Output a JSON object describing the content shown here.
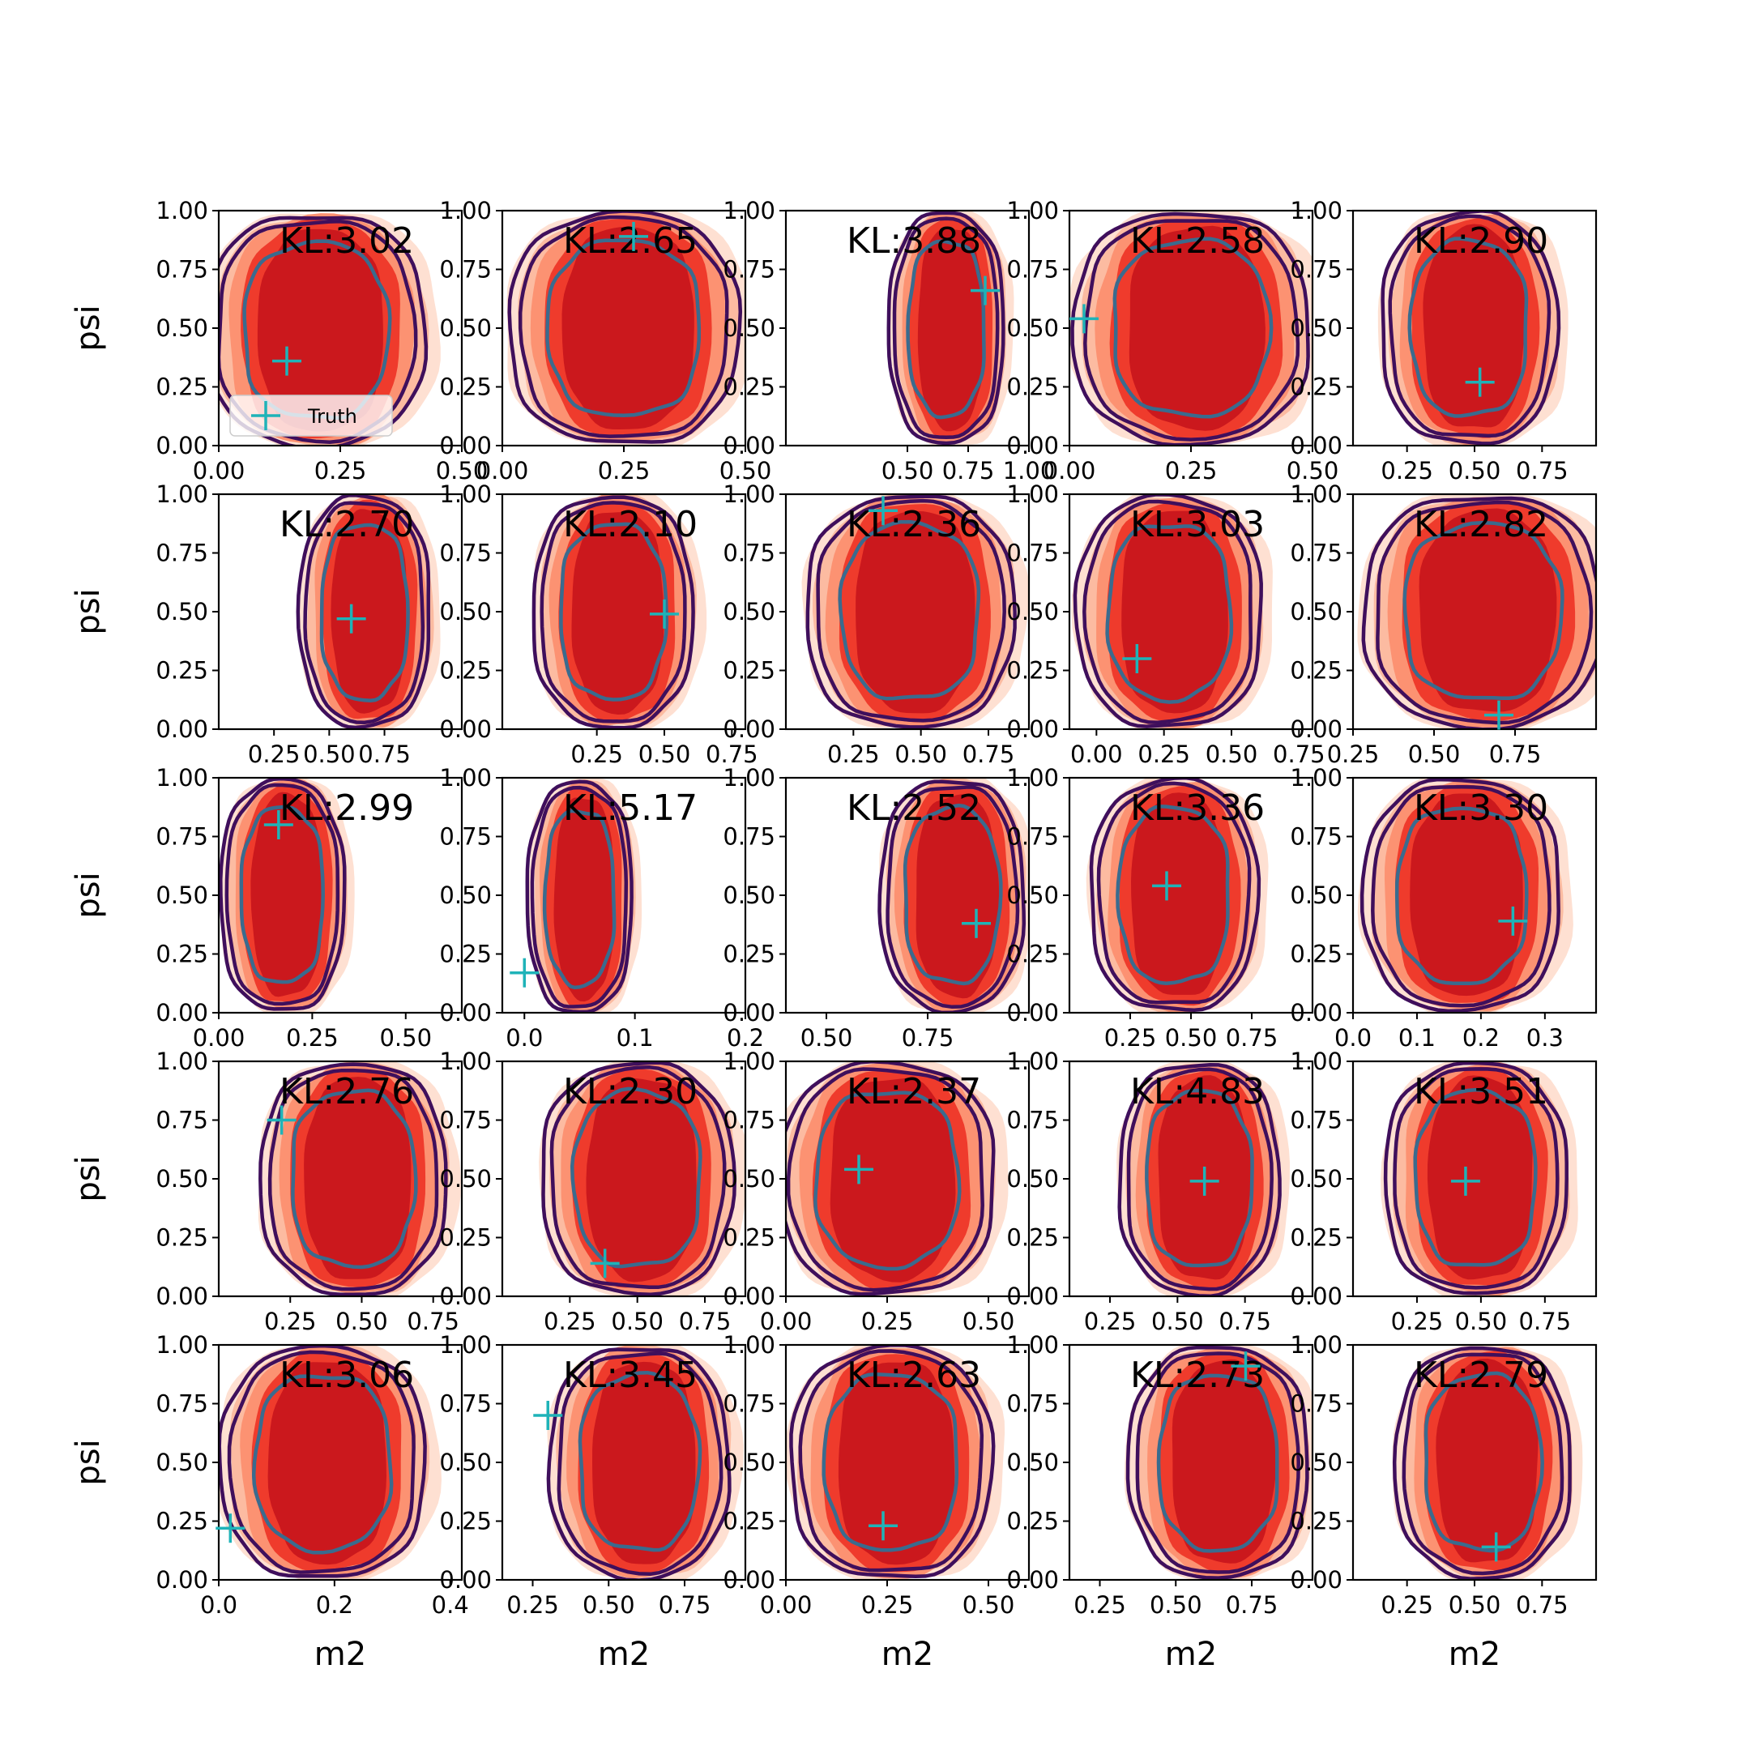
{
  "chart_data": {
    "type": "contour-grid",
    "rows": 5,
    "cols": 5,
    "ylabel": "psi",
    "xlabel": "m2",
    "yticks": [
      "0.00",
      "0.25",
      "0.50",
      "0.75",
      "1.00"
    ],
    "legend": {
      "label": "Truth",
      "placement": "lower-left",
      "panel": 0
    },
    "colors": {
      "fill": [
        "#fee0d2",
        "#fcbba1",
        "#fc9272",
        "#ef3b2c",
        "#cb181d"
      ],
      "outer_line": "#3f0f5c",
      "inner_line": "#3a6b8e",
      "truth": "#1fb3b8"
    },
    "panels": [
      {
        "kl": "KL:3.02",
        "xlim": [
          0.0,
          0.5
        ],
        "xticks": [
          {
            "v": 0.0,
            "t": "0.00"
          },
          {
            "v": 0.25,
            "t": "0.25"
          },
          {
            "v": 0.5,
            "t": "0.50"
          }
        ],
        "center": [
          0.2,
          0.49
        ],
        "width": 0.38,
        "truth": [
          0.14,
          0.36
        ]
      },
      {
        "kl": "KL:2.65",
        "xlim": [
          0.0,
          0.5
        ],
        "xticks": [
          {
            "v": 0.0,
            "t": "0.00"
          },
          {
            "v": 0.25,
            "t": "0.25"
          },
          {
            "v": 0.5,
            "t": "0.50"
          }
        ],
        "center": [
          0.25,
          0.5
        ],
        "width": 0.4,
        "truth": [
          0.27,
          0.89
        ]
      },
      {
        "kl": "KL:3.88",
        "xlim": [
          0.0,
          1.0
        ],
        "xticks": [
          {
            "v": 0.5,
            "t": "0.50"
          },
          {
            "v": 0.75,
            "t": "0.75"
          },
          {
            "v": 1.0,
            "t": "1.00"
          }
        ],
        "center": [
          0.66,
          0.5
        ],
        "width": 0.4,
        "truth": [
          0.82,
          0.66
        ]
      },
      {
        "kl": "KL:2.58",
        "xlim": [
          0.0,
          0.5
        ],
        "xticks": [
          {
            "v": 0.0,
            "t": "0.00"
          },
          {
            "v": 0.25,
            "t": "0.25"
          },
          {
            "v": 0.5,
            "t": "0.50"
          }
        ],
        "center": [
          0.25,
          0.5
        ],
        "width": 0.41,
        "truth": [
          0.03,
          0.54
        ]
      },
      {
        "kl": "KL:2.90",
        "xlim": [
          0.05,
          0.95
        ],
        "xticks": [
          {
            "v": 0.25,
            "t": "0.25"
          },
          {
            "v": 0.5,
            "t": "0.50"
          },
          {
            "v": 0.75,
            "t": "0.75"
          }
        ],
        "center": [
          0.48,
          0.5
        ],
        "width": 0.55,
        "truth": [
          0.52,
          0.27
        ]
      },
      {
        "kl": "KL:2.70",
        "xlim": [
          0.0,
          1.1
        ],
        "xticks": [
          {
            "v": 0.25,
            "t": "0.25"
          },
          {
            "v": 0.5,
            "t": "0.50"
          },
          {
            "v": 0.75,
            "t": "0.75"
          }
        ],
        "center": [
          0.66,
          0.5
        ],
        "width": 0.5,
        "truth": [
          0.6,
          0.47
        ]
      },
      {
        "kl": "KL:2.10",
        "xlim": [
          -0.1,
          0.8
        ],
        "xticks": [
          {
            "v": 0.25,
            "t": "0.25"
          },
          {
            "v": 0.5,
            "t": "0.50"
          },
          {
            "v": 0.75,
            "t": "0.75"
          }
        ],
        "center": [
          0.31,
          0.5
        ],
        "width": 0.5,
        "truth": [
          0.5,
          0.49
        ]
      },
      {
        "kl": "KL:2.36",
        "xlim": [
          0.0,
          0.9
        ],
        "xticks": [
          {
            "v": 0.25,
            "t": "0.25"
          },
          {
            "v": 0.5,
            "t": "0.50"
          },
          {
            "v": 0.75,
            "t": "0.75"
          }
        ],
        "center": [
          0.46,
          0.5
        ],
        "width": 0.65,
        "truth": [
          0.36,
          0.93
        ]
      },
      {
        "kl": "KL:3.03",
        "xlim": [
          -0.1,
          0.8
        ],
        "xticks": [
          {
            "v": 0.0,
            "t": "0.00"
          },
          {
            "v": 0.25,
            "t": "0.25"
          },
          {
            "v": 0.5,
            "t": "0.50"
          },
          {
            "v": 0.75,
            "t": "0.75"
          }
        ],
        "center": [
          0.27,
          0.5
        ],
        "width": 0.58,
        "truth": [
          0.15,
          0.3
        ]
      },
      {
        "kl": "KL:2.82",
        "xlim": [
          0.25,
          1.0
        ],
        "xticks": [
          {
            "v": 0.25,
            "t": "0.25"
          },
          {
            "v": 0.5,
            "t": "0.50"
          },
          {
            "v": 0.75,
            "t": "0.75"
          }
        ],
        "center": [
          0.65,
          0.5
        ],
        "width": 0.62,
        "truth": [
          0.7,
          0.06
        ]
      },
      {
        "kl": "KL:2.99",
        "xlim": [
          0.0,
          0.65
        ],
        "xticks": [
          {
            "v": 0.0,
            "t": "0.00"
          },
          {
            "v": 0.25,
            "t": "0.25"
          },
          {
            "v": 0.5,
            "t": "0.50"
          }
        ],
        "center": [
          0.17,
          0.5
        ],
        "width": 0.28,
        "truth": [
          0.16,
          0.8
        ]
      },
      {
        "kl": "KL:5.17",
        "xlim": [
          -0.02,
          0.2
        ],
        "xticks": [
          {
            "v": 0.0,
            "t": "0.0"
          },
          {
            "v": 0.1,
            "t": "0.1"
          },
          {
            "v": 0.2,
            "t": "0.2"
          }
        ],
        "center": [
          0.05,
          0.49
        ],
        "width": 0.08,
        "truth": [
          0.0,
          0.17
        ]
      },
      {
        "kl": "KL:2.52",
        "xlim": [
          0.4,
          1.0
        ],
        "xticks": [
          {
            "v": 0.5,
            "t": "0.50"
          },
          {
            "v": 0.75,
            "t": "0.75"
          }
        ],
        "center": [
          0.81,
          0.5
        ],
        "width": 0.3,
        "truth": [
          0.87,
          0.38
        ]
      },
      {
        "kl": "KL:3.36",
        "xlim": [
          0.0,
          1.0
        ],
        "xticks": [
          {
            "v": 0.25,
            "t": "0.25"
          },
          {
            "v": 0.5,
            "t": "0.50"
          },
          {
            "v": 0.75,
            "t": "0.75"
          }
        ],
        "center": [
          0.43,
          0.5
        ],
        "width": 0.58,
        "truth": [
          0.4,
          0.54
        ]
      },
      {
        "kl": "KL:3.30",
        "xlim": [
          0.0,
          0.38
        ],
        "xticks": [
          {
            "v": 0.0,
            "t": "0.0"
          },
          {
            "v": 0.1,
            "t": "0.1"
          },
          {
            "v": 0.2,
            "t": "0.2"
          },
          {
            "v": 0.3,
            "t": "0.3"
          }
        ],
        "center": [
          0.17,
          0.5
        ],
        "width": 0.26,
        "truth": [
          0.25,
          0.39
        ]
      },
      {
        "kl": "KL:2.76",
        "xlim": [
          0.0,
          0.85
        ],
        "xticks": [
          {
            "v": 0.25,
            "t": "0.25"
          },
          {
            "v": 0.5,
            "t": "0.50"
          },
          {
            "v": 0.75,
            "t": "0.75"
          }
        ],
        "center": [
          0.47,
          0.5
        ],
        "width": 0.55,
        "truth": [
          0.22,
          0.75
        ]
      },
      {
        "kl": "KL:2.30",
        "xlim": [
          0.0,
          0.9
        ],
        "xticks": [
          {
            "v": 0.25,
            "t": "0.25"
          },
          {
            "v": 0.5,
            "t": "0.50"
          },
          {
            "v": 0.75,
            "t": "0.75"
          }
        ],
        "center": [
          0.5,
          0.5
        ],
        "width": 0.6,
        "truth": [
          0.38,
          0.14
        ]
      },
      {
        "kl": "KL:2.37",
        "xlim": [
          0.0,
          0.6
        ],
        "xticks": [
          {
            "v": 0.0,
            "t": "0.00"
          },
          {
            "v": 0.25,
            "t": "0.25"
          },
          {
            "v": 0.5,
            "t": "0.50"
          }
        ],
        "center": [
          0.25,
          0.5
        ],
        "width": 0.45,
        "truth": [
          0.18,
          0.54
        ]
      },
      {
        "kl": "KL:4.83",
        "xlim": [
          0.1,
          1.0
        ],
        "xticks": [
          {
            "v": 0.25,
            "t": "0.25"
          },
          {
            "v": 0.5,
            "t": "0.50"
          },
          {
            "v": 0.75,
            "t": "0.75"
          }
        ],
        "center": [
          0.58,
          0.5
        ],
        "width": 0.5,
        "truth": [
          0.6,
          0.49
        ]
      },
      {
        "kl": "KL:3.51",
        "xlim": [
          0.0,
          0.95
        ],
        "xticks": [
          {
            "v": 0.25,
            "t": "0.25"
          },
          {
            "v": 0.5,
            "t": "0.50"
          },
          {
            "v": 0.75,
            "t": "0.75"
          }
        ],
        "center": [
          0.48,
          0.5
        ],
        "width": 0.6,
        "truth": [
          0.44,
          0.49
        ]
      },
      {
        "kl": "KL:3.06",
        "xlim": [
          0.0,
          0.42
        ],
        "xticks": [
          {
            "v": 0.0,
            "t": "0.0"
          },
          {
            "v": 0.2,
            "t": "0.2"
          },
          {
            "v": 0.4,
            "t": "0.4"
          }
        ],
        "center": [
          0.18,
          0.5
        ],
        "width": 0.3,
        "truth": [
          0.02,
          0.22
        ]
      },
      {
        "kl": "KL:3.45",
        "xlim": [
          0.15,
          0.95
        ],
        "xticks": [
          {
            "v": 0.25,
            "t": "0.25"
          },
          {
            "v": 0.5,
            "t": "0.50"
          },
          {
            "v": 0.75,
            "t": "0.75"
          }
        ],
        "center": [
          0.6,
          0.5
        ],
        "width": 0.5,
        "truth": [
          0.3,
          0.7
        ]
      },
      {
        "kl": "KL:2.63",
        "xlim": [
          0.0,
          0.6
        ],
        "xticks": [
          {
            "v": 0.0,
            "t": "0.00"
          },
          {
            "v": 0.25,
            "t": "0.25"
          },
          {
            "v": 0.5,
            "t": "0.50"
          }
        ],
        "center": [
          0.26,
          0.5
        ],
        "width": 0.42,
        "truth": [
          0.24,
          0.23
        ]
      },
      {
        "kl": "KL:2.73",
        "xlim": [
          0.15,
          0.95
        ],
        "xticks": [
          {
            "v": 0.25,
            "t": "0.25"
          },
          {
            "v": 0.5,
            "t": "0.50"
          },
          {
            "v": 0.75,
            "t": "0.75"
          }
        ],
        "center": [
          0.64,
          0.5
        ],
        "width": 0.5,
        "truth": [
          0.73,
          0.91
        ]
      },
      {
        "kl": "KL:2.79",
        "xlim": [
          0.05,
          0.95
        ],
        "xticks": [
          {
            "v": 0.25,
            "t": "0.25"
          },
          {
            "v": 0.5,
            "t": "0.50"
          },
          {
            "v": 0.75,
            "t": "0.75"
          }
        ],
        "center": [
          0.53,
          0.5
        ],
        "width": 0.55,
        "truth": [
          0.58,
          0.14
        ]
      }
    ]
  }
}
